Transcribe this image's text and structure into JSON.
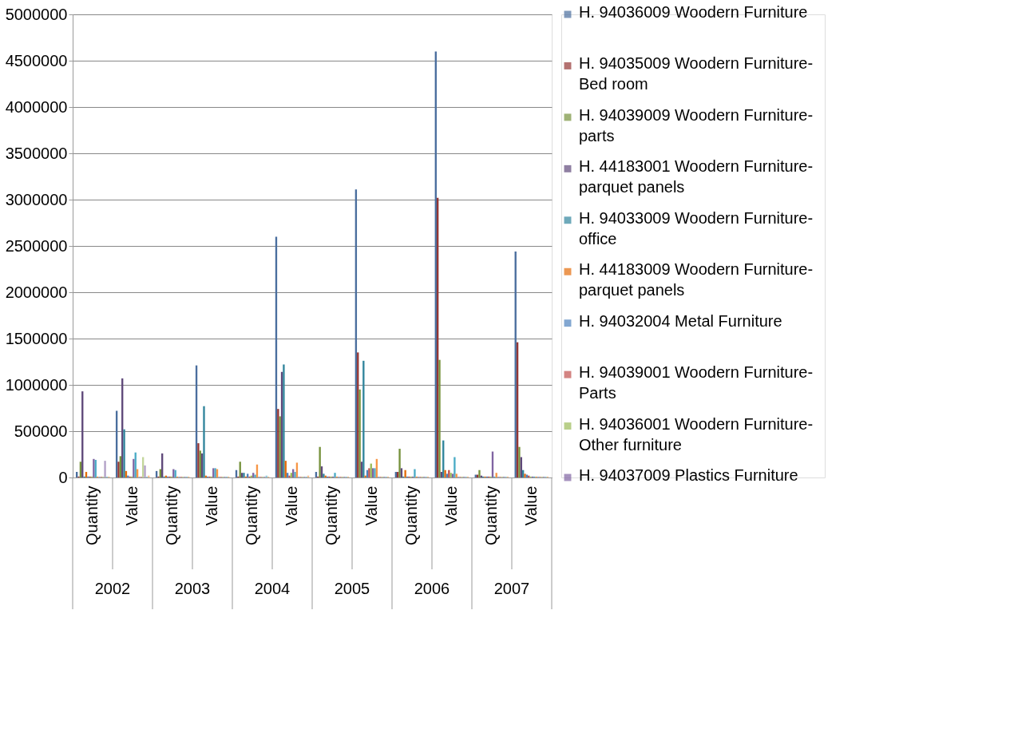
{
  "chart_data": {
    "type": "bar",
    "categories": [
      "Quantity",
      "Value",
      "Quantity",
      "Value",
      "Quantity",
      "Value",
      "Quantity",
      "Value",
      "Quantity",
      "Value",
      "Quantity",
      "Value"
    ],
    "annotations": [
      "2002",
      "2003",
      "2004",
      "2005",
      "2006",
      "2007"
    ],
    "ylim": [
      0,
      5000000
    ],
    "yticks": [
      0,
      500000,
      1000000,
      1500000,
      2000000,
      2500000,
      3000000,
      3500000,
      4000000,
      4500000,
      5000000
    ],
    "grid": "y",
    "legend": "right",
    "series": [
      {
        "name": "H. 94036009 Woodern Furniture",
        "color": "#4a6e9e",
        "values": [
          60000,
          720000,
          70000,
          1210000,
          80000,
          2600000,
          60000,
          3110000,
          60000,
          4600000,
          30000,
          2440000
        ]
      },
      {
        "name": "H. 94035009 Woodern Furniture-Bed room",
        "color": "#943634",
        "values": [
          10000,
          170000,
          10000,
          370000,
          10000,
          740000,
          10000,
          1350000,
          60000,
          3020000,
          30000,
          1460000
        ]
      },
      {
        "name": "H. 94039009 Woodern Furniture-parts",
        "color": "#76923c",
        "values": [
          170000,
          230000,
          90000,
          290000,
          170000,
          660000,
          330000,
          950000,
          310000,
          1270000,
          80000,
          330000
        ]
      },
      {
        "name": "H. 44183001 Woodern Furniture-parquet panels",
        "color": "#5f497a",
        "values": [
          930000,
          1070000,
          260000,
          260000,
          50000,
          1140000,
          120000,
          170000,
          100000,
          60000,
          20000,
          220000
        ]
      },
      {
        "name": "H. 94033009 Woodern Furniture-office",
        "color": "#31859c",
        "values": [
          10000,
          520000,
          10000,
          770000,
          50000,
          1220000,
          40000,
          1260000,
          10000,
          400000,
          10000,
          80000
        ]
      },
      {
        "name": "H. 44183009 Woodern Furniture-parquet panels",
        "color": "#e46c0a",
        "values": [
          60000,
          70000,
          20000,
          20000,
          10000,
          180000,
          20000,
          20000,
          80000,
          80000,
          10000,
          40000
        ]
      },
      {
        "name": "H. 94032004 Metal Furniture",
        "color": "#4f81bd",
        "values": [
          10000,
          20000,
          10000,
          10000,
          40000,
          50000,
          10000,
          80000,
          10000,
          40000,
          10000,
          30000
        ]
      },
      {
        "name": "H. 94039001 Woodern Furniture-Parts",
        "color": "#c0504d",
        "values": [
          10000,
          10000,
          10000,
          10000,
          10000,
          20000,
          10000,
          100000,
          10000,
          80000,
          10000,
          20000
        ]
      },
      {
        "name": "H. 94036001 Woodern Furniture-Other furniture",
        "color": "#9bbb59",
        "values": [
          10000,
          10000,
          10000,
          10000,
          20000,
          50000,
          10000,
          150000,
          10000,
          50000,
          10000,
          10000
        ]
      },
      {
        "name": "H. 94037009 Plastics Furniture",
        "color": "#8064a2",
        "values": [
          200000,
          200000,
          90000,
          100000,
          50000,
          90000,
          10000,
          100000,
          10000,
          40000,
          280000,
          10000
        ]
      },
      {
        "color": "#4bacc6",
        "values": [
          190000,
          270000,
          80000,
          100000,
          30000,
          60000,
          50000,
          100000,
          90000,
          220000,
          10000,
          10000
        ]
      },
      {
        "color": "#f79646",
        "values": [
          10000,
          90000,
          10000,
          90000,
          140000,
          160000,
          10000,
          200000,
          10000,
          40000,
          50000,
          10000
        ]
      },
      {
        "color": "#95b3d7",
        "values": [
          10000,
          10000,
          10000,
          10000,
          10000,
          10000,
          10000,
          10000,
          10000,
          10000,
          10000,
          10000
        ]
      },
      {
        "color": "#d99694",
        "values": [
          10000,
          10000,
          10000,
          10000,
          10000,
          10000,
          10000,
          10000,
          10000,
          10000,
          10000,
          10000
        ]
      },
      {
        "color": "#c3d69b",
        "values": [
          10000,
          220000,
          10000,
          10000,
          10000,
          10000,
          10000,
          10000,
          10000,
          10000,
          10000,
          10000
        ]
      },
      {
        "color": "#b2a1c7",
        "values": [
          180000,
          130000,
          10000,
          10000,
          10000,
          10000,
          10000,
          10000,
          10000,
          10000,
          10000,
          10000
        ]
      },
      {
        "color": "#92cddc",
        "values": [
          10000,
          10000,
          10000,
          10000,
          20000,
          10000,
          10000,
          10000,
          10000,
          10000,
          10000,
          10000
        ]
      },
      {
        "color": "#fac08f",
        "values": [
          10000,
          20000,
          10000,
          10000,
          10000,
          20000,
          10000,
          10000,
          10000,
          10000,
          10000,
          10000
        ]
      }
    ]
  }
}
